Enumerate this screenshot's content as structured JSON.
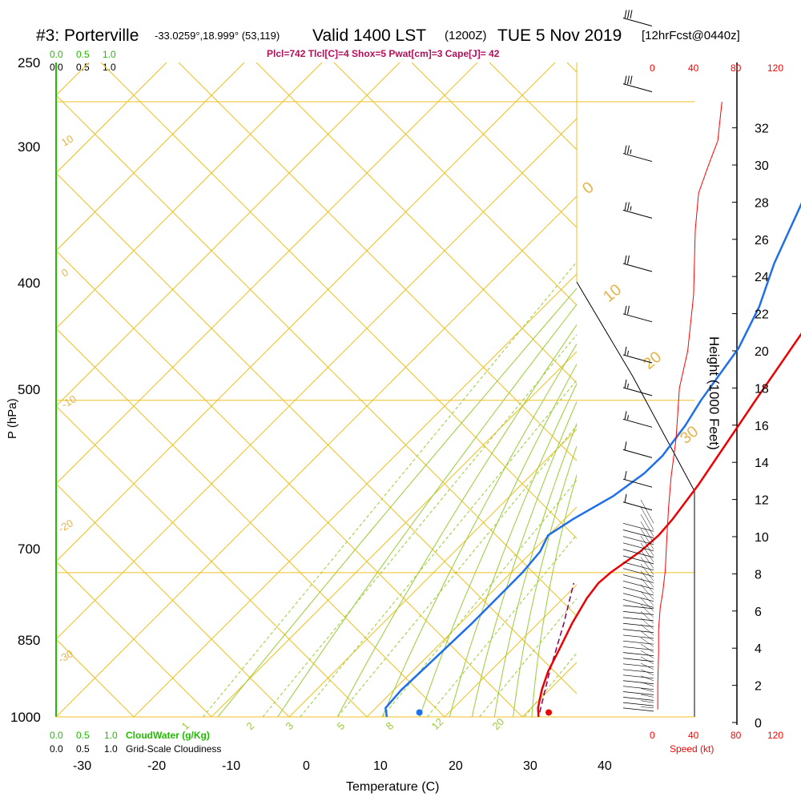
{
  "header": {
    "station": "#3: Porterville",
    "coords": "-33.0259°,18.999° (53,119)",
    "valid": "Valid 1400 LST",
    "zulu": "(1200Z)",
    "date": "TUE 5 Nov 2019",
    "forecast": "[12hrFcst@0440z]",
    "indices": "Plcl=742 Tlcl[C]=4 Shox=5 Pwat[cm]=3 Cape[J]= 42"
  },
  "colors": {
    "isobar": "#f0c020",
    "dry_adiabat": "#f0c020",
    "moist_adiabat": "#99cc33",
    "mixing_ratio": "#99cc33",
    "temperature": "#ee0000",
    "dewpoint": "#1e6fe8",
    "parcel": "#800060",
    "speed": "#ff0000",
    "cloud_water": "#22bb00"
  },
  "legend": {
    "top_cloudwater_ticks": [
      "0.0",
      "0.5",
      "1.0"
    ],
    "top_cloudiness_ticks": [
      "0.0",
      "0.5",
      "1.0"
    ],
    "bottom_cloudwater_ticks": [
      "0.0",
      "0.5",
      "1.0"
    ],
    "cloudwater_label": "CloudWater (g/Kg)",
    "bottom_cloudiness_ticks": [
      "0.0",
      "0.5",
      "1.0"
    ],
    "cloudiness_label": "Grid-Scale Cloudiness"
  },
  "chart_data": {
    "type": "skew-t",
    "xlabel": "Temperature (C)",
    "ylabel": "P (hPa)",
    "y2label": "Height (1000 Feet)",
    "pressure_ticks": [
      "250",
      "300",
      "400",
      "500",
      "700",
      "850",
      "1000"
    ],
    "temperature_ticks": [
      "-30",
      "-20",
      "-10",
      "0",
      "10",
      "20",
      "30",
      "40"
    ],
    "height_ticks": [
      "0",
      "2",
      "4",
      "6",
      "8",
      "10",
      "12",
      "14",
      "16",
      "18",
      "20",
      "22",
      "24",
      "26",
      "28",
      "30",
      "32"
    ],
    "speed_label": "Speed (kt)",
    "speed_ticks_top": [
      "0",
      "40",
      "80",
      "120"
    ],
    "speed_ticks_bottom": [
      "0",
      "40",
      "80",
      "120"
    ],
    "dry_adiabat_labels": [
      "10",
      "0",
      "-10",
      "-20",
      "-30",
      "0",
      "10",
      "20",
      "30"
    ],
    "mixing_ratio_labels": [
      "1",
      "2",
      "3",
      "5",
      "8",
      "12",
      "20"
    ],
    "temperature_profile": [
      {
        "p": 1000,
        "t": 30.9
      },
      {
        "p": 990,
        "t": 29.7
      },
      {
        "p": 970,
        "t": 27.9
      },
      {
        "p": 950,
        "t": 26.4
      },
      {
        "p": 925,
        "t": 25.0
      },
      {
        "p": 900,
        "t": 23.5
      },
      {
        "p": 875,
        "t": 22.3
      },
      {
        "p": 860,
        "t": 21.9
      },
      {
        "p": 850,
        "t": 22.2
      },
      {
        "p": 830,
        "t": 23.5
      },
      {
        "p": 815,
        "t": 23.9
      },
      {
        "p": 800,
        "t": 23.7
      },
      {
        "p": 770,
        "t": 22.8
      },
      {
        "p": 700,
        "t": 19.7
      },
      {
        "p": 650,
        "t": 17.4
      },
      {
        "p": 600,
        "t": 14.7
      },
      {
        "p": 550,
        "t": 11.9
      },
      {
        "p": 500,
        "t": 8.7
      },
      {
        "p": 450,
        "t": 5.1
      },
      {
        "p": 400,
        "t": 1.3
      },
      {
        "p": 350,
        "t": -4.0
      },
      {
        "p": 300,
        "t": -10.4
      },
      {
        "p": 260,
        "t": -15.9
      }
    ],
    "dewpoint_profile": [
      {
        "p": 1000,
        "t": 10.6
      },
      {
        "p": 990,
        "t": 9.3
      },
      {
        "p": 970,
        "t": 9.1
      },
      {
        "p": 950,
        "t": 9.4
      },
      {
        "p": 900,
        "t": 10.1
      },
      {
        "p": 850,
        "t": 10.4
      },
      {
        "p": 830,
        "t": 10.1
      },
      {
        "p": 815,
        "t": 9.1
      },
      {
        "p": 800,
        "t": 10.4
      },
      {
        "p": 780,
        "t": 12.8
      },
      {
        "p": 760,
        "t": 14.1
      },
      {
        "p": 745,
        "t": 14.3
      },
      {
        "p": 720,
        "t": 13.5
      },
      {
        "p": 700,
        "t": 12.4
      },
      {
        "p": 660,
        "t": 10.8
      },
      {
        "p": 630,
        "t": 8.3
      },
      {
        "p": 600,
        "t": 4.8
      },
      {
        "p": 550,
        "t": -0.3
      },
      {
        "p": 500,
        "t": -5.3
      },
      {
        "p": 470,
        "t": -9.2
      },
      {
        "p": 440,
        "t": -12.0
      },
      {
        "p": 400,
        "t": -14.2
      },
      {
        "p": 370,
        "t": -16.6
      },
      {
        "p": 340,
        "t": -19.6
      },
      {
        "p": 300,
        "t": -24.3
      },
      {
        "p": 280,
        "t": -26.5
      },
      {
        "p": 255,
        "t": -30.5
      }
    ],
    "parcel_profile": [
      {
        "p": 995,
        "t": 30.5
      },
      {
        "p": 950,
        "t": 26.6
      },
      {
        "p": 900,
        "t": 22.4
      },
      {
        "p": 860,
        "t": 18.6
      }
    ],
    "surface_temperature": {
      "p": 995,
      "t": 31.7
    },
    "surface_dewpoint": {
      "p": 995,
      "t": 14.4
    },
    "wind_speed_profile": [
      {
        "p": 995,
        "h": 0.7,
        "spd": 5
      },
      {
        "p": 960,
        "h": 2.0,
        "spd": 5
      },
      {
        "p": 900,
        "h": 3.8,
        "spd": 6
      },
      {
        "p": 850,
        "h": 5.0,
        "spd": 6
      },
      {
        "p": 820,
        "h": 6.2,
        "spd": 8
      },
      {
        "p": 800,
        "h": 7.0,
        "spd": 11
      },
      {
        "p": 760,
        "h": 8.2,
        "spd": 14
      },
      {
        "p": 700,
        "h": 10.0,
        "spd": 16
      },
      {
        "p": 650,
        "h": 11.6,
        "spd": 18
      },
      {
        "p": 600,
        "h": 13.2,
        "spd": 21
      },
      {
        "p": 550,
        "h": 15.3,
        "spd": 27
      },
      {
        "p": 500,
        "h": 18.0,
        "spd": 31
      },
      {
        "p": 450,
        "h": 20.0,
        "spd": 41
      },
      {
        "p": 400,
        "h": 23.0,
        "spd": 48
      },
      {
        "p": 350,
        "h": 26.5,
        "spd": 50
      },
      {
        "p": 300,
        "h": 28.5,
        "spd": 54
      },
      {
        "p": 280,
        "h": 30.0,
        "spd": 66
      },
      {
        "p": 265,
        "h": 31.3,
        "spd": 77
      },
      {
        "p": 255,
        "h": 33.4,
        "spd": 82
      }
    ],
    "wind_barbs": [
      {
        "p": 260,
        "spd": 65
      },
      {
        "p": 282,
        "spd": 60
      },
      {
        "p": 305,
        "spd": 55
      },
      {
        "p": 325,
        "spd": 55
      },
      {
        "p": 345,
        "spd": 55
      },
      {
        "p": 368,
        "spd": 40
      },
      {
        "p": 395,
        "spd": 35
      },
      {
        "p": 425,
        "spd": 35
      },
      {
        "p": 455,
        "spd": 30
      },
      {
        "p": 490,
        "spd": 30
      },
      {
        "p": 530,
        "spd": 25
      },
      {
        "p": 565,
        "spd": 25
      },
      {
        "p": 600,
        "spd": 20
      },
      {
        "p": 635,
        "spd": 20
      },
      {
        "p": 665,
        "spd": 15
      },
      {
        "p": 690,
        "spd": 15
      },
      {
        "p": 715,
        "spd": 15
      },
      {
        "p": 740,
        "spd": 10
      },
      {
        "p": 765,
        "spd": 10
      },
      {
        "p": 785,
        "spd": 10
      }
    ]
  }
}
